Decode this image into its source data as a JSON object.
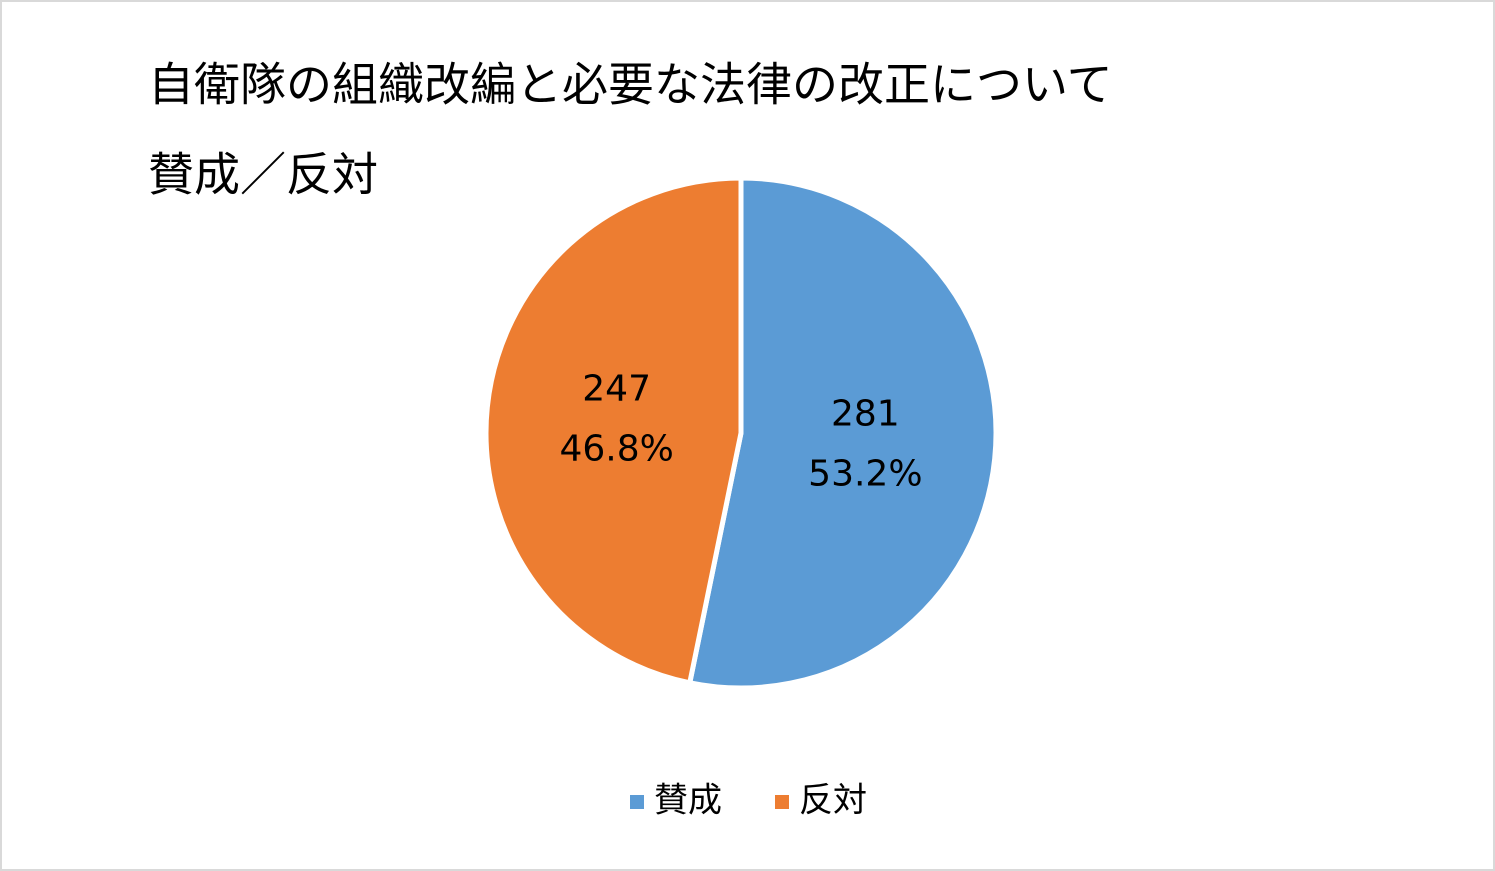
{
  "chart_data": {
    "type": "pie",
    "title": "自衛隊の組織改編と必要な法律の改正について",
    "subtitle": "賛成／反対",
    "categories": [
      "賛成",
      "反対"
    ],
    "values": [
      281,
      247
    ],
    "percentages": [
      53.2,
      46.8
    ],
    "percentage_labels": [
      "53.2%",
      "46.8%"
    ],
    "colors": [
      "#5b9bd5",
      "#ed7d31"
    ],
    "legend": "bottom"
  }
}
